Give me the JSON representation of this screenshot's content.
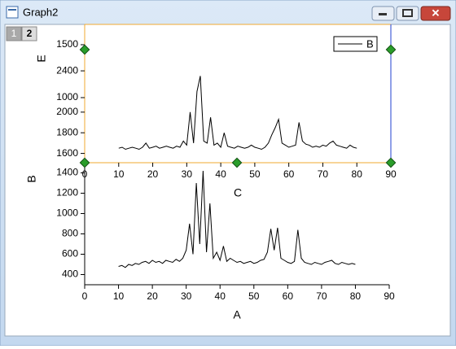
{
  "window": {
    "title": "Graph2",
    "tabs": [
      "1",
      "2"
    ]
  },
  "chart_data": [
    {
      "type": "line",
      "x_label": "A",
      "y_label": "B",
      "color": "#000000",
      "xlim": [
        0,
        90
      ],
      "xticks": [
        0,
        10,
        20,
        30,
        40,
        50,
        60,
        70,
        80,
        90
      ],
      "ylim": [
        300,
        1500
      ],
      "yticks": [
        400,
        600,
        800,
        1000,
        1200,
        1400
      ],
      "x": [
        10,
        11,
        12,
        13,
        14,
        15,
        16,
        17,
        18,
        19,
        20,
        21,
        22,
        23,
        24,
        25,
        26,
        27,
        28,
        29,
        30,
        31,
        32,
        33,
        34,
        35,
        36,
        37,
        38,
        39,
        40,
        41,
        42,
        43,
        44,
        45,
        46,
        47,
        48,
        49,
        50,
        51,
        52,
        53,
        54,
        55,
        56,
        57,
        58,
        59,
        60,
        61,
        62,
        63,
        64,
        65,
        66,
        67,
        68,
        69,
        70,
        71,
        72,
        73,
        74,
        75,
        76,
        77,
        78,
        79,
        80
      ],
      "values": [
        480,
        490,
        470,
        500,
        490,
        510,
        500,
        520,
        530,
        510,
        540,
        520,
        530,
        510,
        540,
        530,
        520,
        550,
        530,
        560,
        640,
        900,
        600,
        1300,
        700,
        1420,
        620,
        1100,
        560,
        620,
        540,
        680,
        530,
        560,
        540,
        520,
        530,
        510,
        520,
        530,
        510,
        520,
        540,
        550,
        620,
        850,
        640,
        860,
        560,
        540,
        520,
        510,
        530,
        840,
        560,
        520,
        510,
        500,
        520,
        510,
        500,
        520,
        530,
        540,
        510,
        500,
        520,
        510,
        500,
        510,
        500
      ]
    },
    {
      "type": "line",
      "x_label": "C",
      "y_label": "E",
      "legend": "upper right",
      "axis_color": "#f0a830",
      "xlim": [
        0,
        90
      ],
      "xticks": [
        0,
        10,
        20,
        30,
        40,
        50,
        60,
        70,
        80,
        90
      ],
      "ylim": [
        1510,
        2850
      ],
      "yticks": [
        1600,
        1800,
        2000,
        2400
      ],
      "y2lim": [
        385,
        1692
      ],
      "y2ticks": [
        1000,
        1500
      ],
      "x": [
        10,
        11,
        12,
        13,
        14,
        15,
        16,
        17,
        18,
        19,
        20,
        21,
        22,
        23,
        24,
        25,
        26,
        27,
        28,
        29,
        30,
        31,
        32,
        33,
        34,
        35,
        36,
        37,
        38,
        39,
        40,
        41,
        42,
        43,
        44,
        45,
        46,
        47,
        48,
        49,
        50,
        51,
        52,
        53,
        54,
        55,
        56,
        57,
        58,
        59,
        60,
        61,
        62,
        63,
        64,
        65,
        66,
        67,
        68,
        69,
        70,
        71,
        72,
        73,
        74,
        75,
        76,
        77,
        78,
        79,
        80
      ],
      "series": [
        {
          "name": "B",
          "color": "#000000",
          "values": [
            1650,
            1660,
            1640,
            1650,
            1660,
            1650,
            1640,
            1660,
            1700,
            1650,
            1660,
            1670,
            1650,
            1660,
            1670,
            1660,
            1650,
            1670,
            1660,
            1720,
            1680,
            2000,
            1700,
            2200,
            2350,
            1720,
            1700,
            1950,
            1680,
            1700,
            1660,
            1800,
            1670,
            1660,
            1650,
            1670,
            1660,
            1650,
            1660,
            1680,
            1660,
            1650,
            1640,
            1660,
            1700,
            1780,
            1850,
            1930,
            1700,
            1680,
            1660,
            1670,
            1680,
            1900,
            1720,
            1690,
            1680,
            1660,
            1670,
            1660,
            1680,
            1670,
            1700,
            1720,
            1680,
            1670,
            1660,
            1650,
            1680,
            1660,
            1650
          ]
        }
      ]
    }
  ]
}
